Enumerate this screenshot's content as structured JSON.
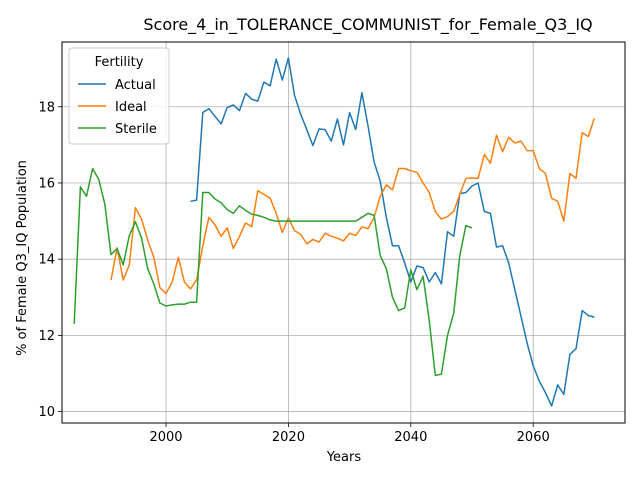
{
  "chart_data": {
    "type": "line",
    "title": "Score_4_in_TOLERANCE_COMMUNIST_for_Female_Q3_IQ",
    "xlabel": "Years",
    "ylabel": "% of Female Q3_IQ Population",
    "xlim": [
      1983,
      2075
    ],
    "ylim": [
      9.7,
      19.7
    ],
    "xticks": [
      2000,
      2020,
      2040,
      2060
    ],
    "yticks": [
      10,
      12,
      14,
      16,
      18
    ],
    "grid": true,
    "legend": {
      "title": "Fertility",
      "position": "top-left"
    },
    "series": [
      {
        "name": "Actual",
        "color": "#1f77b4",
        "x": [
          2004,
          2005,
          2006,
          2007,
          2008,
          2009,
          2010,
          2011,
          2012,
          2013,
          2014,
          2015,
          2016,
          2017,
          2018,
          2019,
          2020,
          2021,
          2022,
          2023,
          2024,
          2025,
          2026,
          2027,
          2028,
          2029,
          2030,
          2031,
          2032,
          2033,
          2034,
          2035,
          2036,
          2037,
          2038,
          2039,
          2040,
          2041,
          2042,
          2043,
          2044,
          2045,
          2046,
          2047,
          2048,
          2049,
          2050,
          2051,
          2052,
          2053,
          2054,
          2055,
          2056,
          2057,
          2058,
          2059,
          2060,
          2061,
          2062,
          2063,
          2064,
          2065,
          2066,
          2067,
          2068,
          2069,
          2070
        ],
        "y": [
          15.52,
          15.55,
          17.85,
          17.95,
          17.75,
          17.55,
          17.98,
          18.05,
          17.9,
          18.35,
          18.2,
          18.15,
          18.65,
          18.55,
          19.25,
          18.7,
          19.28,
          18.3,
          17.8,
          17.4,
          16.98,
          17.42,
          17.4,
          17.1,
          17.68,
          17.0,
          17.85,
          17.4,
          18.37,
          17.5,
          16.55,
          16.05,
          15.1,
          14.35,
          14.35,
          13.9,
          13.4,
          13.82,
          13.78,
          13.4,
          13.65,
          13.35,
          14.72,
          14.6,
          15.72,
          15.75,
          15.92,
          16.0,
          15.25,
          15.2,
          14.32,
          14.35,
          13.9,
          13.2,
          12.5,
          11.8,
          11.2,
          10.8,
          10.5,
          10.15,
          10.7,
          10.45,
          11.5,
          11.65,
          12.65,
          12.52,
          12.48
        ]
      },
      {
        "name": "Ideal",
        "color": "#ff7f0e",
        "x": [
          1991,
          1992,
          1993,
          1994,
          1995,
          1996,
          1997,
          1998,
          1999,
          2000,
          2001,
          2002,
          2003,
          2004,
          2005,
          2006,
          2007,
          2008,
          2009,
          2010,
          2011,
          2012,
          2013,
          2014,
          2015,
          2016,
          2017,
          2018,
          2019,
          2020,
          2021,
          2022,
          2023,
          2024,
          2025,
          2026,
          2027,
          2028,
          2029,
          2030,
          2031,
          2032,
          2033,
          2034,
          2035,
          2036,
          2037,
          2038,
          2039,
          2040,
          2041,
          2042,
          2043,
          2044,
          2045,
          2046,
          2047,
          2048,
          2049,
          2050,
          2051,
          2052,
          2053,
          2054,
          2055,
          2056,
          2057,
          2058,
          2059,
          2060,
          2061,
          2062,
          2063,
          2064,
          2065,
          2066,
          2067,
          2068,
          2069,
          2070
        ],
        "y": [
          13.45,
          14.3,
          13.45,
          13.85,
          15.35,
          15.05,
          14.5,
          14.05,
          13.25,
          13.1,
          13.4,
          14.05,
          13.4,
          13.22,
          13.45,
          14.35,
          15.1,
          14.9,
          14.6,
          14.82,
          14.28,
          14.6,
          14.95,
          14.85,
          15.8,
          15.7,
          15.6,
          15.2,
          14.7,
          15.08,
          14.75,
          14.65,
          14.4,
          14.52,
          14.45,
          14.68,
          14.6,
          14.55,
          14.48,
          14.68,
          14.62,
          14.85,
          14.8,
          15.1,
          15.65,
          15.95,
          15.82,
          16.38,
          16.38,
          16.32,
          16.28,
          16.0,
          15.75,
          15.25,
          15.05,
          15.12,
          15.25,
          15.7,
          16.12,
          16.13,
          16.12,
          16.75,
          16.52,
          17.25,
          16.82,
          17.2,
          17.05,
          17.1,
          16.85,
          16.85,
          16.38,
          16.25,
          15.6,
          15.52,
          15.0,
          16.25,
          16.12,
          17.32,
          17.22,
          17.7
        ]
      },
      {
        "name": "Sterile",
        "color": "#2ca02c",
        "x": [
          1985,
          1986,
          1987,
          1988,
          1989,
          1990,
          1991,
          1992,
          1993,
          1994,
          1995,
          1996,
          1997,
          1998,
          1999,
          2000,
          2001,
          2002,
          2003,
          2004,
          2005,
          2006,
          2007,
          2008,
          2009,
          2010,
          2011,
          2012,
          2013,
          2014,
          2015,
          2016,
          2017,
          2018,
          2019,
          2020,
          2021,
          2022,
          2023,
          2024,
          2025,
          2026,
          2027,
          2028,
          2029,
          2030,
          2031,
          2032,
          2033,
          2034,
          2035,
          2036,
          2037,
          2038,
          2039,
          2040,
          2041,
          2042,
          2043,
          2044,
          2045,
          2046,
          2047,
          2048,
          2049,
          2050
        ],
        "y": [
          12.3,
          15.9,
          15.65,
          16.38,
          16.1,
          15.45,
          14.12,
          14.28,
          13.85,
          14.62,
          14.98,
          14.55,
          13.75,
          13.35,
          12.85,
          12.77,
          12.8,
          12.82,
          12.82,
          12.87,
          12.87,
          15.75,
          15.75,
          15.58,
          15.48,
          15.3,
          15.2,
          15.4,
          15.28,
          15.18,
          15.15,
          15.1,
          15.03,
          15.0,
          15.0,
          15.0,
          15.0,
          15.0,
          15.0,
          15.0,
          15.0,
          15.0,
          15.0,
          15.0,
          15.0,
          15.0,
          15.0,
          15.1,
          15.2,
          15.15,
          14.1,
          13.75,
          13.0,
          12.65,
          12.72,
          13.72,
          13.2,
          13.55,
          12.4,
          10.95,
          10.98,
          12.0,
          12.58,
          14.1,
          14.88,
          14.82
        ]
      }
    ]
  }
}
